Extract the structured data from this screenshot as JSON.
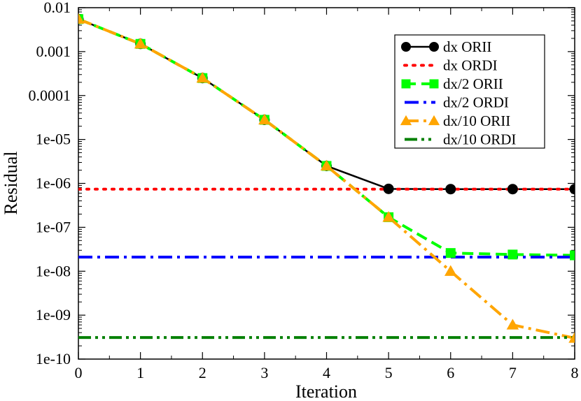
{
  "chart_data": {
    "type": "line",
    "title": "",
    "xlabel": "Iteration",
    "ylabel": "Residual",
    "xlim": [
      0,
      8
    ],
    "ylim": [
      1e-10,
      0.01
    ],
    "yscale": "log",
    "x_ticks": [
      0,
      1,
      2,
      3,
      4,
      5,
      6,
      7,
      8
    ],
    "x_tick_labels": [
      "0",
      "1",
      "2",
      "3",
      "4",
      "5",
      "6",
      "7",
      "8"
    ],
    "y_ticks": [
      0.01,
      0.001,
      0.0001,
      1e-05,
      1e-06,
      1e-07,
      1e-08,
      1e-09,
      1e-10
    ],
    "y_tick_labels": [
      "0.01",
      "0.001",
      "0.0001",
      "1e-05",
      "1e-06",
      "1e-07",
      "1e-08",
      "1e-09",
      "1e-10"
    ],
    "legend_position": "top-right",
    "series": [
      {
        "name": "dx ORII",
        "color": "#000000",
        "dash": "solid",
        "marker": "circle",
        "x": [
          0,
          1,
          2,
          3,
          4,
          5,
          6,
          7,
          8
        ],
        "values": [
          0.0055,
          0.0015,
          0.00025,
          2.8e-05,
          2.5e-06,
          7.5e-07,
          7.4e-07,
          7.4e-07,
          7.4e-07
        ]
      },
      {
        "name": "dx ORDI",
        "color": "#ff0000",
        "dash": "dot",
        "marker": "none",
        "x": [
          0,
          8
        ],
        "values": [
          7.4e-07,
          7.4e-07
        ]
      },
      {
        "name": "dx/2 ORII",
        "color": "#00ff00",
        "dash": "dash",
        "marker": "square",
        "x": [
          0,
          1,
          2,
          3,
          4,
          5,
          6,
          7,
          8
        ],
        "values": [
          0.0055,
          0.0015,
          0.00025,
          2.8e-05,
          2.5e-06,
          1.7e-07,
          2.6e-08,
          2.4e-08,
          2.3e-08
        ]
      },
      {
        "name": "dx/2 ORDI",
        "color": "#0000ff",
        "dash": "dashdot",
        "marker": "none",
        "x": [
          0,
          8
        ],
        "values": [
          2.1e-08,
          2.1e-08
        ]
      },
      {
        "name": "dx/10 ORII",
        "color": "#ffa500",
        "dash": "dashdot",
        "marker": "triangle",
        "x": [
          0,
          1,
          2,
          3,
          4,
          5,
          6,
          7,
          8
        ],
        "values": [
          0.0055,
          0.0015,
          0.00025,
          2.8e-05,
          2.5e-06,
          1.7e-07,
          1e-08,
          6e-10,
          3e-10
        ]
      },
      {
        "name": "dx/10 ORDI",
        "color": "#008000",
        "dash": "dashdotdot",
        "marker": "none",
        "x": [
          0,
          8
        ],
        "values": [
          3.1e-10,
          3.1e-10
        ]
      }
    ]
  }
}
